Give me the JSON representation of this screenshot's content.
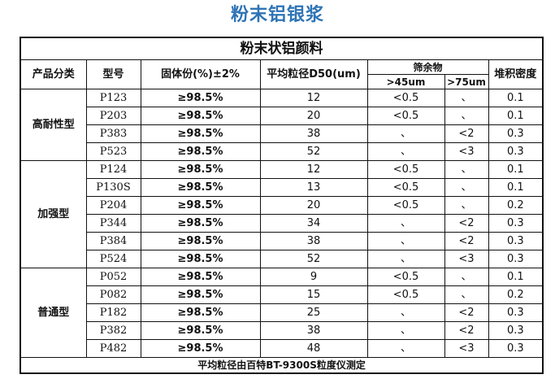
{
  "page": {
    "title": "粉末铝银浆",
    "title_color": "#2e74b5"
  },
  "table": {
    "title": "粉末状铝颜料",
    "headers": {
      "category": "产品分类",
      "model": "型号",
      "solid": "固体份(%)±2%",
      "d50": "平均粒径D50(um)",
      "sieve": "筛余物",
      "sieve_45": ">45um",
      "sieve_75": ">75um",
      "density": "堆积密度"
    },
    "groups": [
      {
        "category": "高耐性型",
        "rows": [
          {
            "model": "P123",
            "solid": "≥98.5%",
            "d50": "12",
            "s45": "<0.5",
            "s75": "、",
            "density": "0.1"
          },
          {
            "model": "P203",
            "solid": "≥98.5%",
            "d50": "20",
            "s45": "<0.5",
            "s75": "、",
            "density": "0.1"
          },
          {
            "model": "P383",
            "solid": "≥98.5%",
            "d50": "38",
            "s45": "、",
            "s75": "<2",
            "density": "0.3"
          },
          {
            "model": "P523",
            "solid": "≥98.5%",
            "d50": "52",
            "s45": "、",
            "s75": "<3",
            "density": "0.3"
          }
        ]
      },
      {
        "category": "加强型",
        "rows": [
          {
            "model": "P124",
            "solid": "≥98.5%",
            "d50": "12",
            "s45": "<0.5",
            "s75": "、",
            "density": "0.1"
          },
          {
            "model": "P130S",
            "solid": "≥98.5%",
            "d50": "13",
            "s45": "<0.5",
            "s75": "、",
            "density": "0.1"
          },
          {
            "model": "P204",
            "solid": "≥98.5%",
            "d50": "20",
            "s45": "<0.5",
            "s75": "、",
            "density": "0.2"
          },
          {
            "model": "P344",
            "solid": "≥98.5%",
            "d50": "34",
            "s45": "、",
            "s75": "<2",
            "density": "0.3"
          },
          {
            "model": "P384",
            "solid": "≥98.5%",
            "d50": "38",
            "s45": "、",
            "s75": "<2",
            "density": "0.3"
          },
          {
            "model": "P524",
            "solid": "≥98.5%",
            "d50": "52",
            "s45": "、",
            "s75": "<3",
            "density": "0.3"
          }
        ]
      },
      {
        "category": "普通型",
        "rows": [
          {
            "model": "P052",
            "solid": "≥98.5%",
            "d50": "9",
            "s45": "<0.5",
            "s75": "、",
            "density": "0.1"
          },
          {
            "model": "P082",
            "solid": "≥98.5%",
            "d50": "15",
            "s45": "<0.5",
            "s75": "、",
            "density": "0.2"
          },
          {
            "model": "P182",
            "solid": "≥98.5%",
            "d50": "25",
            "s45": "、",
            "s75": "<2",
            "density": "0.3"
          },
          {
            "model": "P382",
            "solid": "≥98.5%",
            "d50": "38",
            "s45": "、",
            "s75": "<2",
            "density": "0.3"
          },
          {
            "model": "P482",
            "solid": "≥98.5%",
            "d50": "48",
            "s45": "、",
            "s75": "<3",
            "density": "0.3"
          }
        ]
      }
    ],
    "footnote": "平均粒径由百特BT-9300S粒度仪测定"
  }
}
